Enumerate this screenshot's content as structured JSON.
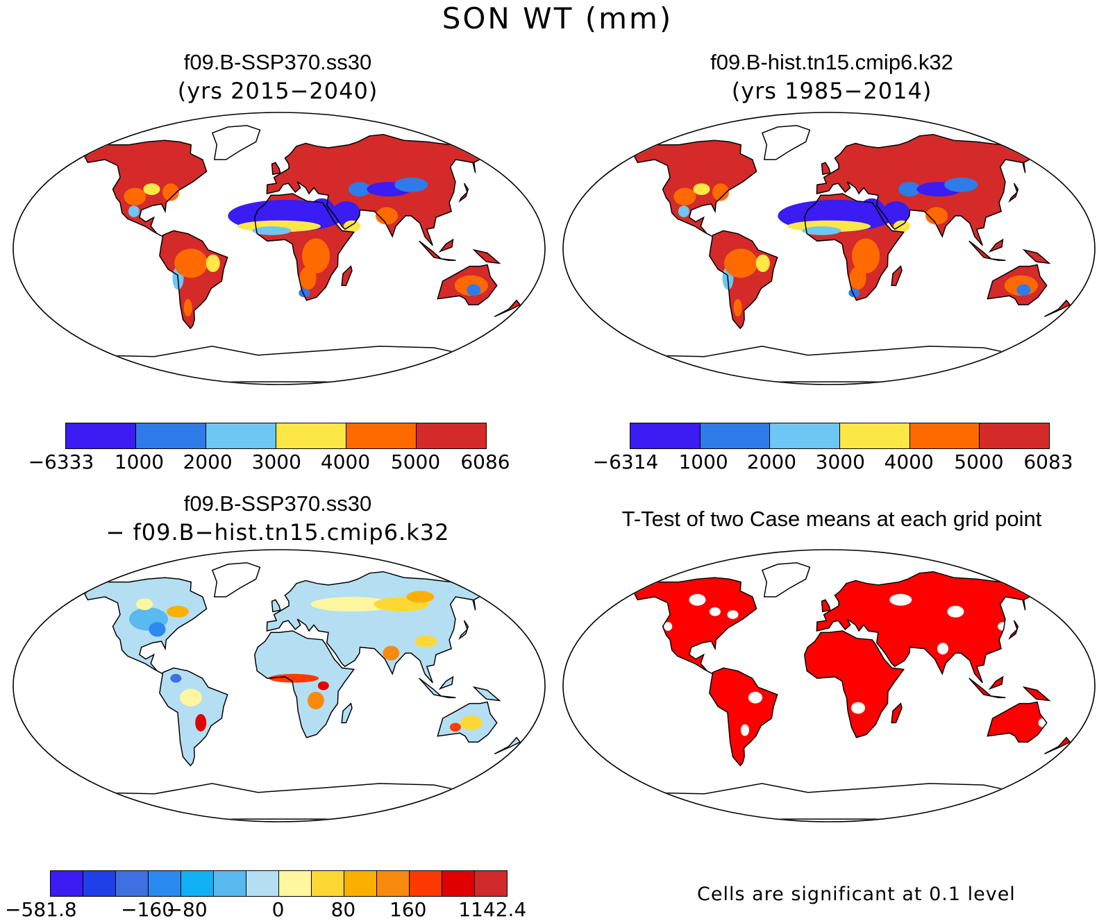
{
  "main_title": "SON WT (mm)",
  "panels": [
    {
      "id": "tl",
      "title": "f09.B-SSP370.ss30",
      "subtitle": "(yrs 2015−2040)",
      "colors": [
        "#3b1cf2",
        "#2f7be8",
        "#6ec6f2",
        "#fde747",
        "#ff6a00",
        "#d42a2a"
      ]
    },
    {
      "id": "tr",
      "title": "f09.B-hist.tn15.cmip6.k32",
      "subtitle": "(yrs 1985−2014)",
      "colors": [
        "#3b1cf2",
        "#2f7be8",
        "#6ec6f2",
        "#fde747",
        "#ff6a00",
        "#d42a2a"
      ]
    },
    {
      "id": "bl",
      "title": "f09.B-SSP370.ss30",
      "subtitle": "− f09.B−hist.tn15.cmip6.k32"
    },
    {
      "id": "br",
      "title": "T-Test of two Case means at each grid point",
      "subtitle": ""
    }
  ],
  "colorbar_tl": {
    "colors": [
      "#3b1cf2",
      "#2f7be8",
      "#6ec6f2",
      "#fde747",
      "#ff6a00",
      "#d42a2a"
    ],
    "labels": [
      "−6333",
      "1000",
      "2000",
      "3000",
      "4000",
      "5000",
      "6086"
    ]
  },
  "colorbar_tr": {
    "colors": [
      "#3b1cf2",
      "#2f7be8",
      "#6ec6f2",
      "#fde747",
      "#ff6a00",
      "#d42a2a"
    ],
    "labels": [
      "−6314",
      "1000",
      "2000",
      "3000",
      "4000",
      "5000",
      "6083"
    ]
  },
  "colorbar_bl": {
    "colors": [
      "#3b1cf2",
      "#1f3fe8",
      "#3f6fe0",
      "#2a8af0",
      "#12b0f5",
      "#5ab9ef",
      "#b4dff3",
      "#fff6a0",
      "#fdd835",
      "#fbb000",
      "#f98a10",
      "#ff3a00",
      "#e10000",
      "#d22a2a"
    ],
    "labels": [
      "−581.8",
      "−160",
      "−80",
      "0",
      "80",
      "160",
      "1142.4"
    ]
  },
  "note_br": "Cells are significant at 0.1 level",
  "sig_color": "#ff0000"
}
